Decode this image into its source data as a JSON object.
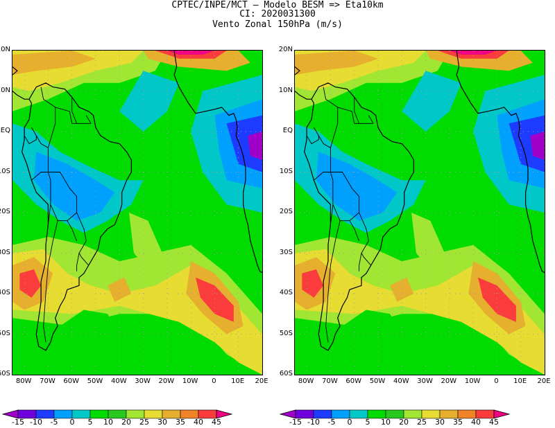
{
  "header": {
    "line1": "CPTEC/INPE/MCT –  Modelo BESM => Eta10km",
    "line2": "CI: 2020031300",
    "line3": "Vento Zonal 150hPa (m/s)"
  },
  "lat_labels": [
    "20N",
    "10N",
    "EQ",
    "10S",
    "20S",
    "30S",
    "40S",
    "50S",
    "60S"
  ],
  "lon_labels": [
    "80W",
    "70W",
    "60W",
    "50W",
    "40W",
    "30W",
    "20W",
    "10W",
    "0",
    "10E",
    "20E"
  ],
  "colorbar": {
    "labels": [
      "-15",
      "-10",
      "-5",
      "0",
      "5",
      "10",
      "20",
      "25",
      "30",
      "35",
      "40",
      "45"
    ],
    "colors": [
      "#a000c8",
      "#6e00dc",
      "#1e3cff",
      "#00a0ff",
      "#00c8c8",
      "#00dc00",
      "#28c81e",
      "#a0e632",
      "#e6dc32",
      "#e6af2d",
      "#f08228",
      "#fa3c3c",
      "#f00082"
    ]
  },
  "maps": [
    {
      "name": "left-map"
    },
    {
      "name": "right-map"
    }
  ]
}
